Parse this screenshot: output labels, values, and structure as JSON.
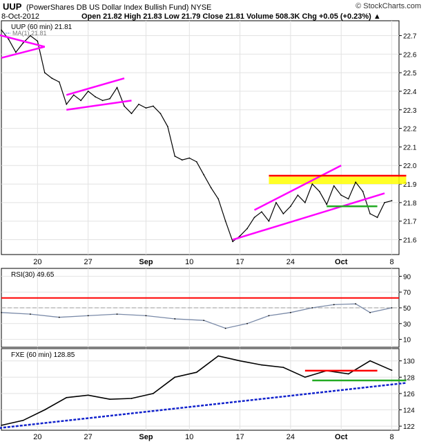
{
  "header": {
    "symbol": "UUP",
    "description": "(PowerShares DB US Dollar Index Bullish Fund)  NYSE",
    "date": "8-Oct-2012",
    "quote": "Open 21.82   High 21.83   Low 21.79   Close 21.81   Volume 508.3K   Chg +0.05 (+0.23%) ▲",
    "watermark": "© StockCharts.com"
  },
  "chart_data": [
    {
      "type": "line",
      "title": "UUP (60 min) 21.81",
      "legend": [
        {
          "label": "UUP (60 min) 21.81",
          "color": "#000000"
        },
        {
          "label": "MA(1) 21.81",
          "color": "#5577cc"
        }
      ],
      "ylim": [
        21.52,
        22.78
      ],
      "y_ticks": [
        21.6,
        21.7,
        21.8,
        21.9,
        22.0,
        22.1,
        22.2,
        22.3,
        22.4,
        22.5,
        22.6,
        22.7
      ],
      "x_tick_labels": [
        "20",
        "27",
        "Sep",
        "10",
        "17",
        "24",
        "Oct",
        "8"
      ],
      "x_range": [
        "2012-08-15",
        "2012-10-09"
      ],
      "points": [
        {
          "x": "2012-08-15",
          "y": 22.73
        },
        {
          "x": "2012-08-16",
          "y": 22.68
        },
        {
          "x": "2012-08-17",
          "y": 22.61
        },
        {
          "x": "2012-08-18",
          "y": 22.66
        },
        {
          "x": "2012-08-19",
          "y": 22.7
        },
        {
          "x": "2012-08-20",
          "y": 22.67
        },
        {
          "x": "2012-08-21",
          "y": 22.5
        },
        {
          "x": "2012-08-22",
          "y": 22.47
        },
        {
          "x": "2012-08-23",
          "y": 22.45
        },
        {
          "x": "2012-08-24",
          "y": 22.33
        },
        {
          "x": "2012-08-25",
          "y": 22.38
        },
        {
          "x": "2012-08-26",
          "y": 22.35
        },
        {
          "x": "2012-08-27",
          "y": 22.4
        },
        {
          "x": "2012-08-28",
          "y": 22.37
        },
        {
          "x": "2012-08-29",
          "y": 22.35
        },
        {
          "x": "2012-08-30",
          "y": 22.36
        },
        {
          "x": "2012-08-31",
          "y": 22.42
        },
        {
          "x": "2012-09-01",
          "y": 22.32
        },
        {
          "x": "2012-09-02",
          "y": 22.28
        },
        {
          "x": "2012-09-03",
          "y": 22.33
        },
        {
          "x": "2012-09-04",
          "y": 22.31
        },
        {
          "x": "2012-09-05",
          "y": 22.32
        },
        {
          "x": "2012-09-06",
          "y": 22.28
        },
        {
          "x": "2012-09-07",
          "y": 22.21
        },
        {
          "x": "2012-09-08",
          "y": 22.05
        },
        {
          "x": "2012-09-09",
          "y": 22.03
        },
        {
          "x": "2012-09-10",
          "y": 22.04
        },
        {
          "x": "2012-09-11",
          "y": 22.02
        },
        {
          "x": "2012-09-12",
          "y": 21.95
        },
        {
          "x": "2012-09-13",
          "y": 21.88
        },
        {
          "x": "2012-09-14",
          "y": 21.82
        },
        {
          "x": "2012-09-15",
          "y": 21.7
        },
        {
          "x": "2012-09-16",
          "y": 21.59
        },
        {
          "x": "2012-09-17",
          "y": 21.62
        },
        {
          "x": "2012-09-18",
          "y": 21.66
        },
        {
          "x": "2012-09-19",
          "y": 21.72
        },
        {
          "x": "2012-09-20",
          "y": 21.75
        },
        {
          "x": "2012-09-21",
          "y": 21.7
        },
        {
          "x": "2012-09-22",
          "y": 21.8
        },
        {
          "x": "2012-09-23",
          "y": 21.74
        },
        {
          "x": "2012-09-24",
          "y": 21.78
        },
        {
          "x": "2012-09-25",
          "y": 21.84
        },
        {
          "x": "2012-09-26",
          "y": 21.8
        },
        {
          "x": "2012-09-27",
          "y": 21.9
        },
        {
          "x": "2012-09-28",
          "y": 21.86
        },
        {
          "x": "2012-09-29",
          "y": 21.79
        },
        {
          "x": "2012-09-30",
          "y": 21.89
        },
        {
          "x": "2012-10-01",
          "y": 21.84
        },
        {
          "x": "2012-10-02",
          "y": 21.82
        },
        {
          "x": "2012-10-03",
          "y": 21.91
        },
        {
          "x": "2012-10-04",
          "y": 21.86
        },
        {
          "x": "2012-10-05",
          "y": 21.74
        },
        {
          "x": "2012-10-06",
          "y": 21.72
        },
        {
          "x": "2012-10-07",
          "y": 21.8
        },
        {
          "x": "2012-10-08",
          "y": 21.81
        }
      ],
      "annotations": [
        {
          "kind": "line",
          "color": "#ff00ff",
          "from": {
            "x": "2012-08-13",
            "y": 22.72
          },
          "to": {
            "x": "2012-08-21",
            "y": 22.64
          }
        },
        {
          "kind": "line",
          "color": "#ff00ff",
          "from": {
            "x": "2012-08-15",
            "y": 22.58
          },
          "to": {
            "x": "2012-08-21",
            "y": 22.64
          }
        },
        {
          "kind": "line",
          "color": "#ff00ff",
          "from": {
            "x": "2012-08-24",
            "y": 22.38
          },
          "to": {
            "x": "2012-09-01",
            "y": 22.47
          }
        },
        {
          "kind": "line",
          "color": "#ff00ff",
          "from": {
            "x": "2012-08-24",
            "y": 22.3
          },
          "to": {
            "x": "2012-09-02",
            "y": 22.35
          }
        },
        {
          "kind": "line",
          "color": "#ff00ff",
          "from": {
            "x": "2012-09-19",
            "y": 21.76
          },
          "to": {
            "x": "2012-10-01",
            "y": 22.0
          }
        },
        {
          "kind": "line",
          "color": "#ff00ff",
          "from": {
            "x": "2012-09-16",
            "y": 21.6
          },
          "to": {
            "x": "2012-10-07",
            "y": 21.85
          }
        },
        {
          "kind": "band",
          "color": "#ffff00",
          "from": {
            "x": "2012-09-21",
            "y": 21.9
          },
          "to": {
            "x": "2012-10-10",
            "y": 21.94
          }
        },
        {
          "kind": "line",
          "color": "#ff0000",
          "from": {
            "x": "2012-09-21",
            "y": 21.945
          },
          "to": {
            "x": "2012-10-10",
            "y": 21.945
          }
        },
        {
          "kind": "line",
          "color": "#22aa22",
          "from": {
            "x": "2012-09-29",
            "y": 21.78
          },
          "to": {
            "x": "2012-10-06",
            "y": 21.78
          }
        }
      ]
    },
    {
      "type": "line",
      "title": "RSI(30) 49.65",
      "ylim": [
        0,
        100
      ],
      "y_ticks": [
        10,
        30,
        50,
        70,
        90
      ],
      "reference_lines": [
        {
          "y": 62.5,
          "color": "#ff0000"
        },
        {
          "y": 50,
          "color": "#999999"
        }
      ],
      "points": [
        {
          "x": "2012-08-15",
          "y": 44
        },
        {
          "x": "2012-08-19",
          "y": 42
        },
        {
          "x": "2012-08-23",
          "y": 38
        },
        {
          "x": "2012-08-27",
          "y": 40
        },
        {
          "x": "2012-08-31",
          "y": 42
        },
        {
          "x": "2012-09-04",
          "y": 40
        },
        {
          "x": "2012-09-08",
          "y": 36
        },
        {
          "x": "2012-09-12",
          "y": 34
        },
        {
          "x": "2012-09-15",
          "y": 24
        },
        {
          "x": "2012-09-18",
          "y": 30
        },
        {
          "x": "2012-09-21",
          "y": 40
        },
        {
          "x": "2012-09-24",
          "y": 44
        },
        {
          "x": "2012-09-27",
          "y": 50
        },
        {
          "x": "2012-09-30",
          "y": 54
        },
        {
          "x": "2012-10-03",
          "y": 55
        },
        {
          "x": "2012-10-05",
          "y": 44
        },
        {
          "x": "2012-10-08",
          "y": 50
        }
      ]
    },
    {
      "type": "line",
      "title": "FXE (60 min) 128.85",
      "ylim": [
        121.5,
        131.5
      ],
      "y_ticks": [
        122,
        124,
        126,
        128,
        130
      ],
      "points": [
        {
          "x": "2012-08-15",
          "y": 122.1
        },
        {
          "x": "2012-08-18",
          "y": 122.7
        },
        {
          "x": "2012-08-21",
          "y": 124.0
        },
        {
          "x": "2012-08-24",
          "y": 125.5
        },
        {
          "x": "2012-08-27",
          "y": 125.8
        },
        {
          "x": "2012-08-30",
          "y": 125.3
        },
        {
          "x": "2012-09-02",
          "y": 125.4
        },
        {
          "x": "2012-09-05",
          "y": 126.0
        },
        {
          "x": "2012-09-08",
          "y": 128.0
        },
        {
          "x": "2012-09-11",
          "y": 128.6
        },
        {
          "x": "2012-09-14",
          "y": 130.6
        },
        {
          "x": "2012-09-17",
          "y": 130.0
        },
        {
          "x": "2012-09-20",
          "y": 129.5
        },
        {
          "x": "2012-09-23",
          "y": 129.2
        },
        {
          "x": "2012-09-26",
          "y": 128.0
        },
        {
          "x": "2012-09-29",
          "y": 128.8
        },
        {
          "x": "2012-10-02",
          "y": 128.4
        },
        {
          "x": "2012-10-05",
          "y": 130.0
        },
        {
          "x": "2012-10-08",
          "y": 128.85
        }
      ],
      "annotations": [
        {
          "kind": "line",
          "color": "#1122cc",
          "from": {
            "x": "2012-08-13",
            "y": 121.6
          },
          "to": {
            "x": "2012-10-10",
            "y": 127.3
          }
        },
        {
          "kind": "line",
          "color": "#ff0000",
          "from": {
            "x": "2012-09-26",
            "y": 128.8
          },
          "to": {
            "x": "2012-10-06",
            "y": 128.8
          }
        },
        {
          "kind": "line",
          "color": "#22aa22",
          "from": {
            "x": "2012-09-27",
            "y": 127.6
          },
          "to": {
            "x": "2012-10-10",
            "y": 127.6
          }
        }
      ]
    }
  ]
}
